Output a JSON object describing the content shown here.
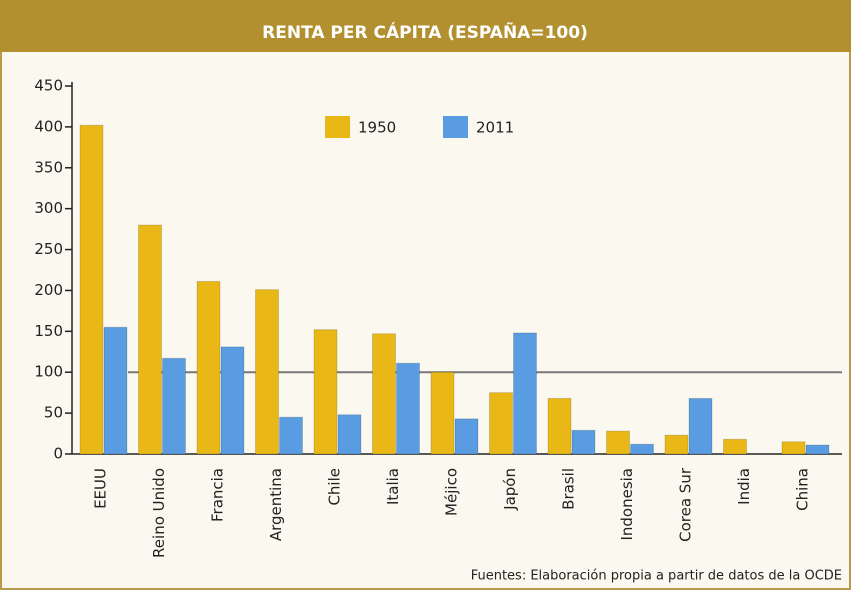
{
  "chart_data": {
    "type": "bar",
    "title": "RENTA PER CÁPITA (ESPAÑA=100)",
    "source": "Fuentes: Elaboración propia a partir de datos de la OCDE",
    "categories": [
      "EEUU",
      "Reino Unido",
      "Francia",
      "Argentina",
      "Chile",
      "Italia",
      "Méjico",
      "Japón",
      "Brasil",
      "Indonesia",
      "Corea Sur",
      "India",
      "China"
    ],
    "series": [
      {
        "name": "1950",
        "color": "#e9b816",
        "values": [
          402,
          280,
          211,
          201,
          152,
          147,
          100,
          75,
          68,
          28,
          23,
          18,
          15
        ]
      },
      {
        "name": "2011",
        "color": "#5a9ce2",
        "values": [
          155,
          117,
          131,
          45,
          48,
          111,
          43,
          148,
          29,
          12,
          68,
          null,
          11
        ]
      }
    ],
    "ylim": [
      0,
      450
    ],
    "yticks": [
      0,
      50,
      100,
      150,
      200,
      250,
      300,
      350,
      400,
      450
    ],
    "reference_line": 100,
    "grid": false,
    "legend": "top"
  }
}
